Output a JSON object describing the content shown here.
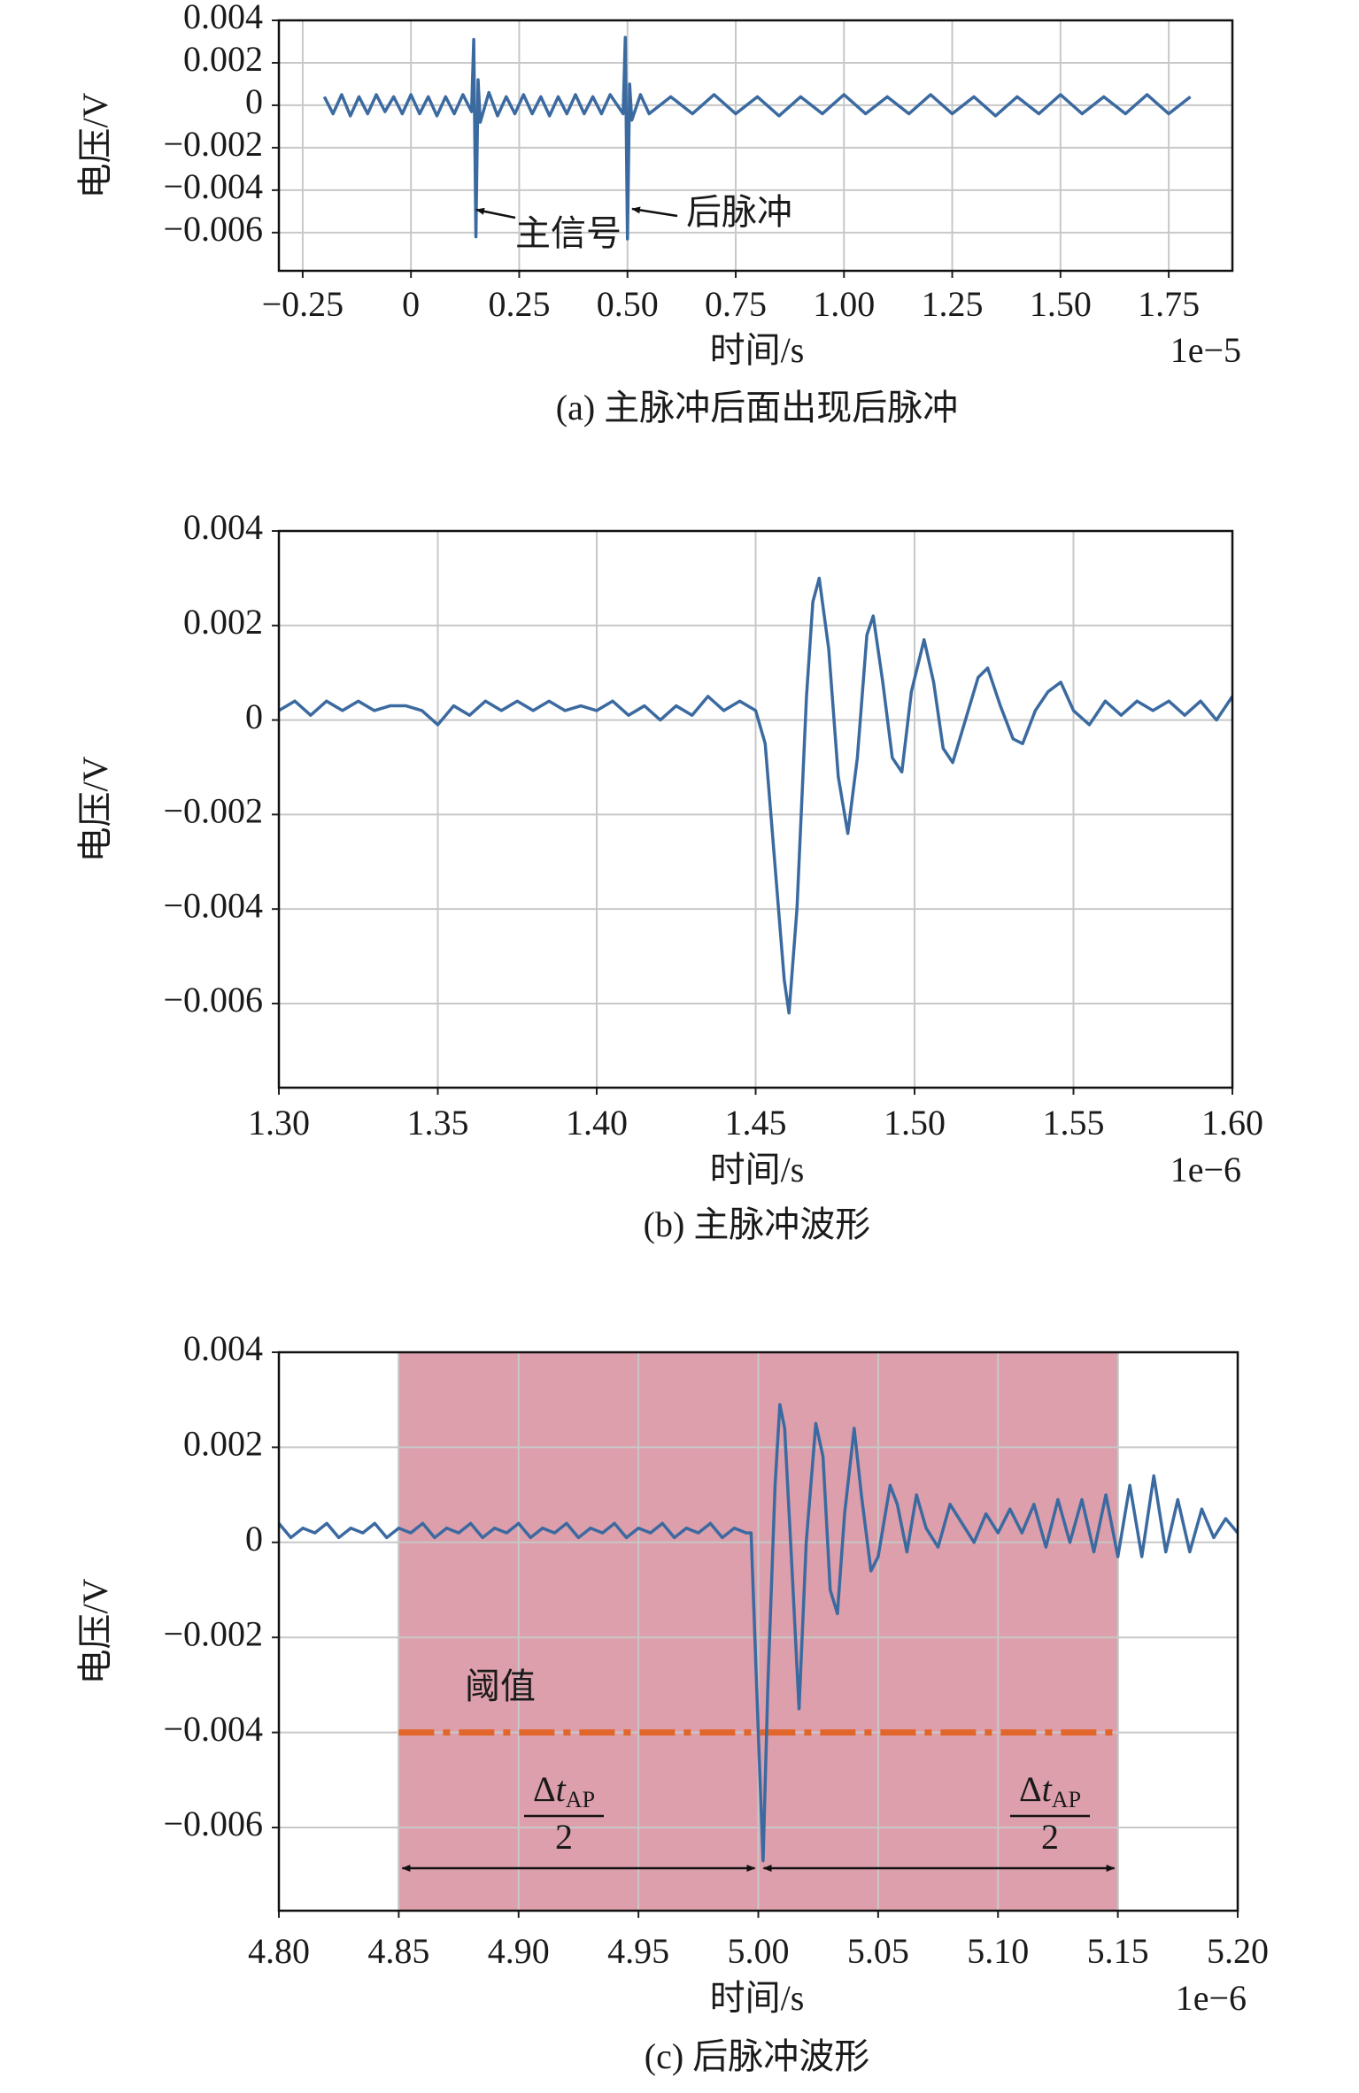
{
  "chart_data": [
    {
      "type": "line",
      "color": "#3b6aa0",
      "grid": true,
      "x_label": "时间/s",
      "x_offset_label": "1e−5",
      "y_label": "电压/V",
      "caption": "(a) 主脉冲后面出现后脉冲",
      "xlim": [
        -0.305,
        1.897
      ],
      "ylim": [
        -0.0078,
        0.004
      ],
      "xticks": [
        {
          "value": -0.25,
          "label": "−0.25"
        },
        0,
        0.25,
        {
          "value": 0.5,
          "label": "0.50"
        },
        0.75,
        {
          "value": 1,
          "label": "1.00"
        },
        1.25,
        {
          "value": 1.5,
          "label": "1.50"
        },
        1.75
      ],
      "yticks": [
        0.004,
        0.002,
        0,
        {
          "value": -0.002,
          "label": "−0.002"
        },
        {
          "value": -0.004,
          "label": "−0.004"
        },
        {
          "value": -0.006,
          "label": "−0.006"
        }
      ],
      "annotations": [
        "主信号",
        "后脉冲"
      ],
      "x": [
        -0.2,
        -0.18,
        -0.16,
        -0.14,
        -0.12,
        -0.1,
        -0.08,
        -0.06,
        -0.04,
        -0.02,
        0,
        0.02,
        0.04,
        0.06,
        0.08,
        0.1,
        0.12,
        0.14,
        0.145,
        0.15,
        0.155,
        0.16,
        0.18,
        0.2,
        0.22,
        0.24,
        0.26,
        0.28,
        0.3,
        0.32,
        0.34,
        0.36,
        0.38,
        0.4,
        0.42,
        0.44,
        0.46,
        0.49,
        0.495,
        0.5,
        0.505,
        0.51,
        0.53,
        0.55,
        0.6,
        0.65,
        0.7,
        0.75,
        0.8,
        0.85,
        0.9,
        0.95,
        1.0,
        1.05,
        1.1,
        1.15,
        1.2,
        1.25,
        1.3,
        1.35,
        1.4,
        1.45,
        1.5,
        1.55,
        1.6,
        1.65,
        1.7,
        1.75,
        1.8
      ],
      "values": [
        0.0004,
        -0.0004,
        0.0005,
        -0.0005,
        0.0004,
        -0.0004,
        0.0005,
        -0.0003,
        0.0004,
        -0.0004,
        0.0005,
        -0.0004,
        0.0004,
        -0.0005,
        0.0004,
        -0.0004,
        0.0005,
        -0.0003,
        0.0031,
        -0.0062,
        0.0012,
        -0.0008,
        0.0006,
        -0.0005,
        0.0004,
        -0.0004,
        0.0005,
        -0.0004,
        0.0004,
        -0.0005,
        0.0004,
        -0.0004,
        0.0005,
        -0.0004,
        0.0004,
        -0.0004,
        0.0005,
        -0.0004,
        0.0032,
        -0.0063,
        0.001,
        -0.0007,
        0.0005,
        -0.0004,
        0.0004,
        -0.0004,
        0.0005,
        -0.0004,
        0.0004,
        -0.0005,
        0.0004,
        -0.0004,
        0.0005,
        -0.0004,
        0.0004,
        -0.0004,
        0.0005,
        -0.0004,
        0.0004,
        -0.0005,
        0.0004,
        -0.0004,
        0.0005,
        -0.0004,
        0.0004,
        -0.0004,
        0.0005,
        -0.0004,
        0.0004
      ]
    },
    {
      "type": "line",
      "color": "#3b6aa0",
      "grid": true,
      "x_label": "时间/s",
      "x_offset_label": "1e−6",
      "y_label": "电压/V",
      "caption": "(b) 主脉冲波形",
      "xlim": [
        1.3,
        1.6
      ],
      "ylim": [
        -0.00778,
        0.004
      ],
      "xticks": [
        {
          "value": 1.3,
          "label": "1.30"
        },
        1.35,
        {
          "value": 1.4,
          "label": "1.40"
        },
        1.45,
        {
          "value": 1.5,
          "label": "1.50"
        },
        1.55,
        {
          "value": 1.6,
          "label": "1.60"
        }
      ],
      "yticks": [
        0.004,
        0.002,
        0,
        {
          "value": -0.002,
          "label": "−0.002"
        },
        {
          "value": -0.004,
          "label": "−0.004"
        },
        {
          "value": -0.006,
          "label": "−0.006"
        }
      ],
      "x": [
        1.3,
        1.305,
        1.31,
        1.315,
        1.32,
        1.325,
        1.33,
        1.335,
        1.34,
        1.345,
        1.35,
        1.355,
        1.36,
        1.365,
        1.37,
        1.375,
        1.38,
        1.385,
        1.39,
        1.395,
        1.4,
        1.405,
        1.41,
        1.415,
        1.42,
        1.425,
        1.43,
        1.435,
        1.44,
        1.445,
        1.45,
        1.453,
        1.456,
        1.459,
        1.4605,
        1.463,
        1.466,
        1.468,
        1.47,
        1.473,
        1.476,
        1.479,
        1.482,
        1.485,
        1.487,
        1.49,
        1.493,
        1.496,
        1.499,
        1.503,
        1.506,
        1.509,
        1.512,
        1.516,
        1.52,
        1.523,
        1.527,
        1.531,
        1.534,
        1.538,
        1.542,
        1.546,
        1.55,
        1.555,
        1.56,
        1.565,
        1.57,
        1.575,
        1.58,
        1.585,
        1.59,
        1.595,
        1.6
      ],
      "values": [
        0.0002,
        0.0004,
        0.0001,
        0.0004,
        0.0002,
        0.0004,
        0.0002,
        0.0003,
        0.0003,
        0.0002,
        -0.0001,
        0.0003,
        0.0001,
        0.0004,
        0.0002,
        0.0004,
        0.0002,
        0.0004,
        0.0002,
        0.0003,
        0.0002,
        0.0004,
        0.0001,
        0.0003,
        0,
        0.0003,
        0.0001,
        0.0005,
        0.0002,
        0.0004,
        0.0002,
        -0.0005,
        -0.003,
        -0.0055,
        -0.0062,
        -0.004,
        0.0005,
        0.0025,
        0.003,
        0.0015,
        -0.0012,
        -0.0024,
        -0.0008,
        0.0018,
        0.0022,
        0.0008,
        -0.0008,
        -0.0011,
        0.0006,
        0.0017,
        0.0008,
        -0.0006,
        -0.0009,
        0,
        0.0009,
        0.0011,
        0.0003,
        -0.0004,
        -0.0005,
        0.0002,
        0.0006,
        0.0008,
        0.0002,
        -0.0001,
        0.0004,
        0.0001,
        0.0004,
        0.0002,
        0.0004,
        0.0001,
        0.0004,
        0,
        0.0005
      ]
    },
    {
      "type": "line",
      "color": "#3b6aa0",
      "grid": true,
      "x_label": "时间/s",
      "x_offset_label": "1e−6",
      "y_label": "电压/V",
      "caption": "(c) 后脉冲波形",
      "xlim": [
        4.8,
        5.2
      ],
      "ylim": [
        -0.00775,
        0.004
      ],
      "xticks": [
        {
          "value": 4.8,
          "label": "4.80"
        },
        4.85,
        {
          "value": 4.9,
          "label": "4.90"
        },
        4.95,
        {
          "value": 5,
          "label": "5.00"
        },
        5.05,
        {
          "value": 5.1,
          "label": "5.10"
        },
        5.15,
        {
          "value": 5.2,
          "label": "5.20"
        }
      ],
      "yticks": [
        0.004,
        0.002,
        0,
        {
          "value": -0.002,
          "label": "−0.002"
        },
        {
          "value": -0.004,
          "label": "−0.004"
        },
        {
          "value": -0.006,
          "label": "−0.006"
        }
      ],
      "shaded_region": [
        4.85,
        5.15
      ],
      "shade_color": "#dc9fab",
      "threshold": -0.004,
      "threshold_color": "#e2662a",
      "threshold_label": "阈值",
      "center": 5,
      "span_label": {
        "delta": "Δ",
        "var": "t",
        "subscript": "AP",
        "denominator": "2"
      },
      "x": [
        4.8,
        4.805,
        4.81,
        4.815,
        4.82,
        4.825,
        4.83,
        4.835,
        4.84,
        4.845,
        4.85,
        4.855,
        4.86,
        4.865,
        4.87,
        4.875,
        4.88,
        4.885,
        4.89,
        4.895,
        4.9,
        4.905,
        4.91,
        4.915,
        4.92,
        4.925,
        4.93,
        4.935,
        4.94,
        4.945,
        4.95,
        4.955,
        4.96,
        4.965,
        4.97,
        4.975,
        4.98,
        4.985,
        4.99,
        4.995,
        4.997,
        5,
        5.002,
        5.004,
        5.007,
        5.009,
        5.011,
        5.014,
        5.017,
        5.02,
        5.024,
        5.027,
        5.03,
        5.033,
        5.036,
        5.04,
        5.043,
        5.047,
        5.05,
        5.055,
        5.058,
        5.062,
        5.066,
        5.07,
        5.075,
        5.08,
        5.085,
        5.09,
        5.095,
        5.1,
        5.105,
        5.11,
        5.115,
        5.12,
        5.125,
        5.13,
        5.135,
        5.14,
        5.145,
        5.15,
        5.155,
        5.16,
        5.165,
        5.17,
        5.175,
        5.18,
        5.185,
        5.19,
        5.195,
        5.2
      ],
      "values": [
        0.0004,
        0.0001,
        0.0003,
        0.0002,
        0.0004,
        0.0001,
        0.0003,
        0.0002,
        0.0004,
        0.0001,
        0.0003,
        0.0002,
        0.0004,
        0.0001,
        0.0003,
        0.0002,
        0.0004,
        0.0001,
        0.0003,
        0.0002,
        0.0004,
        0.0001,
        0.0003,
        0.0002,
        0.0004,
        0.0001,
        0.0003,
        0.0002,
        0.0004,
        0.0001,
        0.0003,
        0.0002,
        0.0004,
        0.0001,
        0.0003,
        0.0002,
        0.0004,
        0.0001,
        0.0003,
        0.0002,
        0.0002,
        -0.004,
        -0.0067,
        -0.003,
        0.0012,
        0.0029,
        0.0024,
        -0.0005,
        -0.0035,
        0,
        0.0025,
        0.0018,
        -0.001,
        -0.0015,
        0.0006,
        0.0024,
        0.001,
        -0.0006,
        -0.0003,
        0.0012,
        0.0008,
        -0.0002,
        0.001,
        0.0003,
        -0.0001,
        0.0008,
        0.0004,
        0,
        0.0006,
        0.0002,
        0.0007,
        0.0002,
        0.0008,
        -0.0001,
        0.0009,
        0,
        0.0009,
        -0.0002,
        0.001,
        -0.0003,
        0.0012,
        -0.0003,
        0.0014,
        -0.0002,
        0.0009,
        -0.0002,
        0.0007,
        0.0001,
        0.0005,
        0.0002
      ]
    }
  ]
}
